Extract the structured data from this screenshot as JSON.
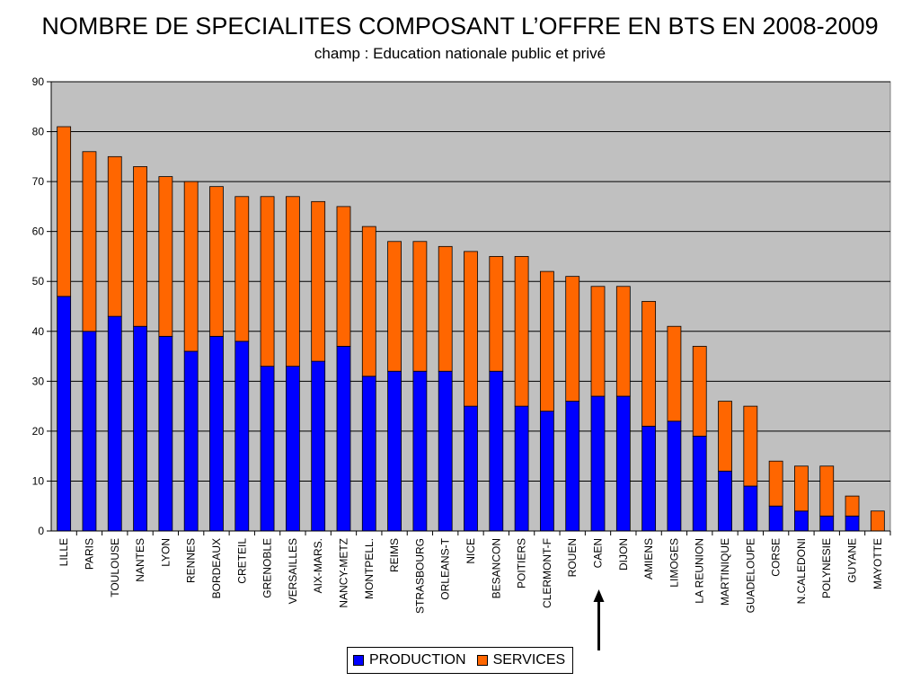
{
  "colors": {
    "production": "#0000FF",
    "services": "#FF6600",
    "plot_bg": "#C0C0C0",
    "grid": "#000000"
  },
  "chart_data": {
    "type": "bar",
    "stacked": true,
    "title": "NOMBRE DE SPECIALITES COMPOSANT L’OFFRE EN BTS EN 2008-2009",
    "subtitle": "champ : Education nationale public et privé",
    "ylim": [
      0,
      90
    ],
    "yticks": [
      0,
      10,
      20,
      30,
      40,
      50,
      60,
      70,
      80,
      90
    ],
    "grid": true,
    "legend_position": "bottom",
    "annotation": "arrow pointing to CAEN",
    "highlight_category": "CAEN",
    "categories": [
      "LILLE",
      "PARIS",
      "TOULOUSE",
      "NANTES",
      "LYON",
      "RENNES",
      "BORDEAUX",
      "CRETEIL",
      "GRENOBLE",
      "VERSAILLES",
      "AIX-MARS.",
      "NANCY-METZ",
      "MONTPELL.",
      "REIMS",
      "STRASBOURG",
      "ORLEANS-T",
      "NICE",
      "BESANCON",
      "POITIERS",
      "CLERMONT-F",
      "ROUEN",
      "CAEN",
      "DIJON",
      "AMIENS",
      "LIMOGES",
      "LA REUNION",
      "MARTINIQUE",
      "GUADELOUPE",
      "CORSE",
      "N.CALEDONI",
      "POLYNESIE",
      "GUYANE",
      "MAYOTTE"
    ],
    "series": [
      {
        "name": "PRODUCTION",
        "values": [
          47,
          40,
          43,
          41,
          39,
          36,
          39,
          38,
          33,
          33,
          34,
          37,
          31,
          32,
          32,
          32,
          25,
          32,
          25,
          24,
          26,
          27,
          27,
          21,
          22,
          19,
          12,
          9,
          5,
          4,
          3,
          3,
          0
        ]
      },
      {
        "name": "SERVICES",
        "values": [
          34,
          36,
          32,
          32,
          32,
          34,
          30,
          29,
          34,
          34,
          32,
          28,
          30,
          26,
          26,
          25,
          31,
          23,
          30,
          28,
          25,
          22,
          22,
          25,
          19,
          18,
          14,
          16,
          9,
          9,
          10,
          4,
          4
        ]
      }
    ]
  }
}
